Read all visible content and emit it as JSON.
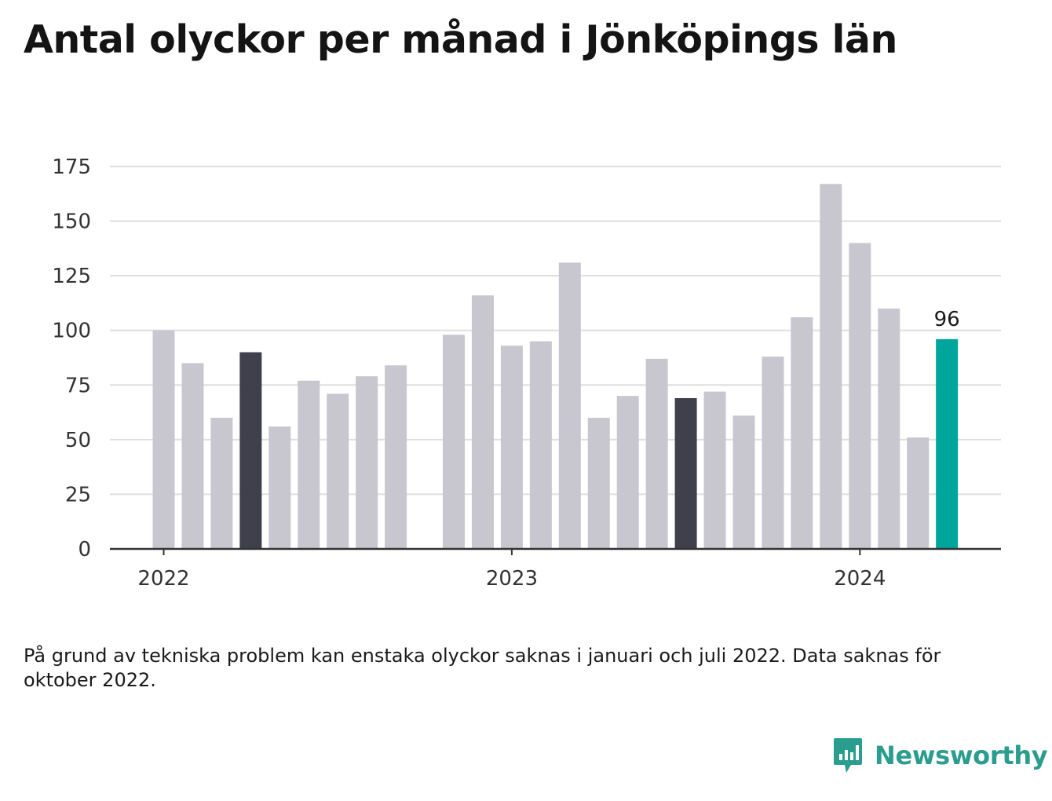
{
  "title": "Antal olyckor per månad i Jönköpings län",
  "note": "På grund av tekniska problem kan enstaka olyckor saknas i januari och juli 2022. Data saknas för oktober 2022.",
  "brand": {
    "name": "Newsworthy",
    "icon": "newsworthy-logo-icon"
  },
  "colors": {
    "default_bar": "#c8c7d0",
    "highlight_bar": "#403f4c",
    "latest_bar": "#00a69c",
    "grid": "#dedede",
    "baseline": "#333333"
  },
  "chart_data": {
    "type": "bar",
    "title": "Antal olyckor per månad i Jönköpings län",
    "xlabel": "",
    "ylabel": "",
    "ylim": [
      0,
      175
    ],
    "yticks": [
      0,
      25,
      50,
      75,
      100,
      125,
      150,
      175
    ],
    "grid": true,
    "x_tick_labels": [
      {
        "label": "2022",
        "month": "2022-01"
      },
      {
        "label": "2023",
        "month": "2023-01"
      },
      {
        "label": "2024",
        "month": "2024-01"
      }
    ],
    "months": [
      "2022-01",
      "2022-02",
      "2022-03",
      "2022-04",
      "2022-05",
      "2022-06",
      "2022-07",
      "2022-08",
      "2022-09",
      "2022-10",
      "2022-11",
      "2022-12",
      "2023-01",
      "2023-02",
      "2023-03",
      "2023-04",
      "2023-05",
      "2023-06",
      "2023-07",
      "2023-08",
      "2023-09",
      "2023-10",
      "2023-11",
      "2023-12",
      "2024-01",
      "2024-02",
      "2024-03",
      "2024-04"
    ],
    "values": [
      100,
      85,
      60,
      90,
      56,
      77,
      71,
      79,
      84,
      null,
      98,
      116,
      93,
      95,
      131,
      60,
      70,
      87,
      69,
      72,
      61,
      88,
      106,
      167,
      140,
      110,
      51,
      96
    ],
    "highlighted_months": [
      "2022-04",
      "2023-07"
    ],
    "latest_label": {
      "month": "2024-04",
      "text": "96"
    }
  }
}
